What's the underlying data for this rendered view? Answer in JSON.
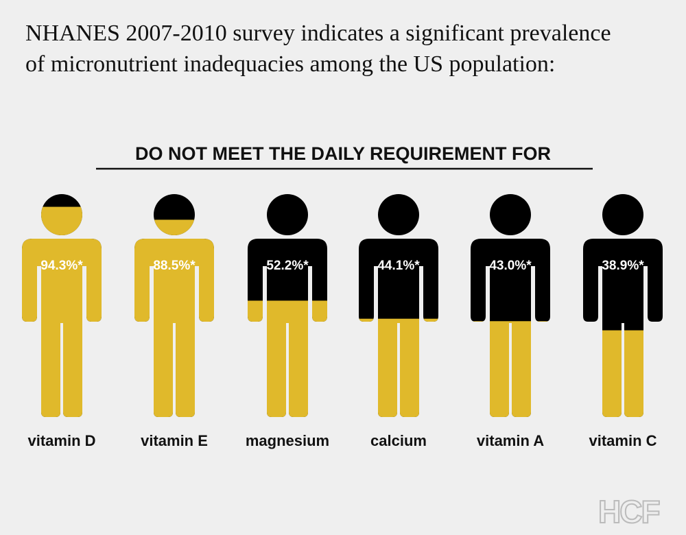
{
  "chart_data": {
    "type": "pictograph",
    "title": "NHANES 2007-2010 survey indicates a significant prevalence of micronutrient inadequacies among the US population:",
    "subtitle": "DO NOT MEET THE DAILY REQUIREMENT FOR",
    "categories": [
      "vitamin D",
      "vitamin E",
      "magnesium",
      "calcium",
      "vitamin A",
      "vitamin C"
    ],
    "values": [
      94.3,
      88.5,
      52.2,
      44.1,
      43.0,
      38.9
    ],
    "value_labels": [
      "94.3%*",
      "88.5%*",
      "52.2%*",
      "44.1%*",
      "43.0%*",
      "38.9%*"
    ],
    "ylim": [
      0,
      100
    ],
    "color": "#e0b92b",
    "empty_color": "#000000"
  },
  "logo": "HCF"
}
